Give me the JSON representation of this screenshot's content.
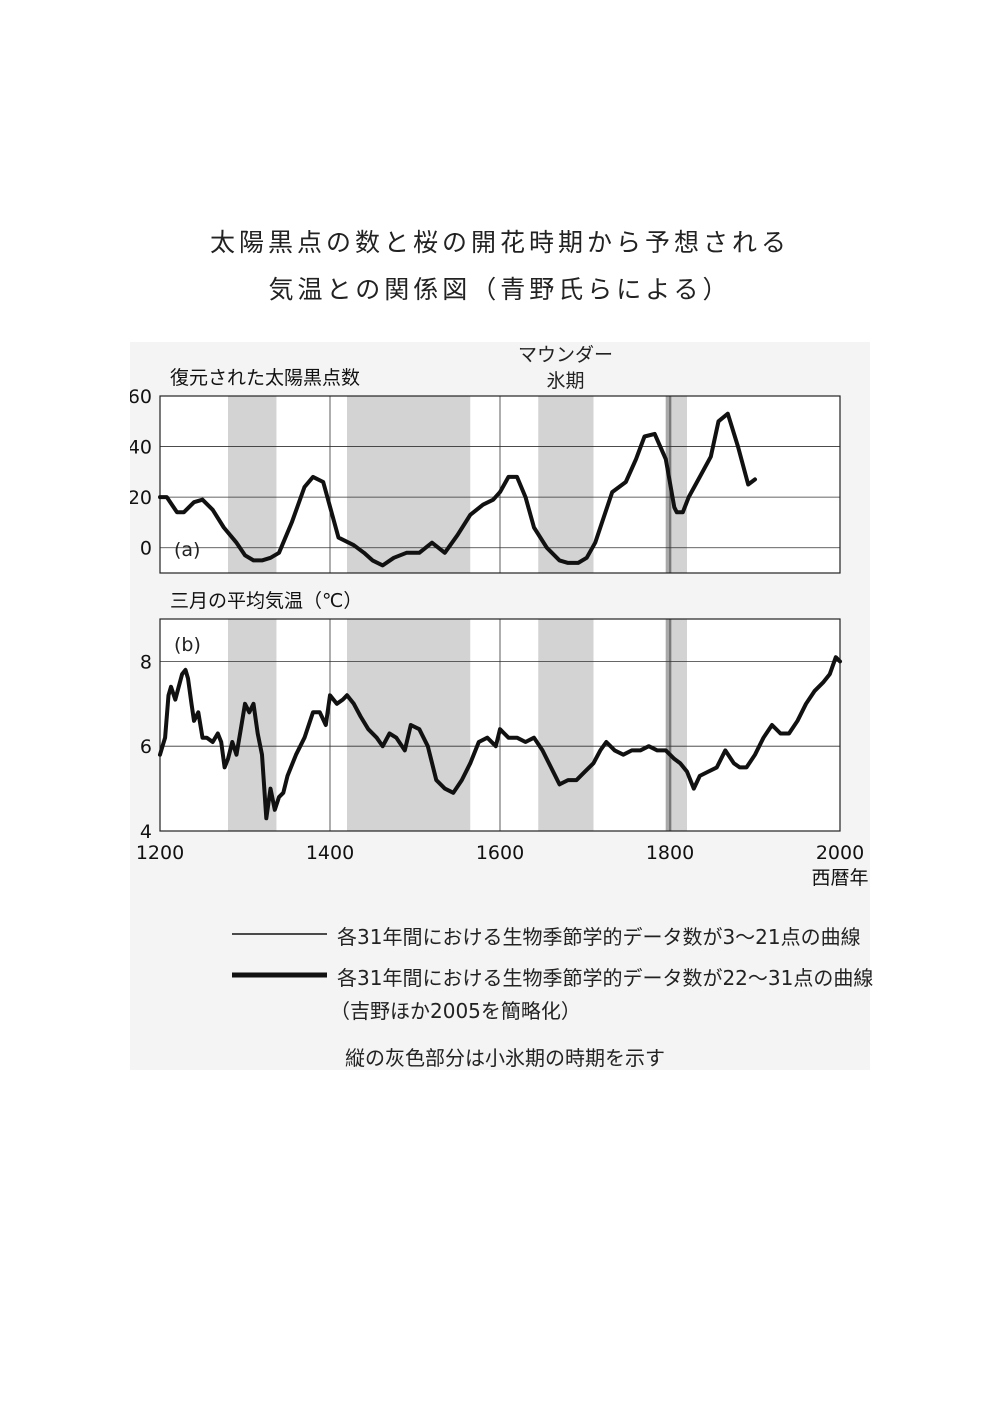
{
  "page": {
    "title_line1": "太陽黒点の数と桜の開花時期から予想される",
    "title_line2": "気温との関係図（青野氏らによる）"
  },
  "legend": {
    "thin_line": "各31年間における生物季節学的データ数が3〜21点の曲線",
    "thick_line": "各31年間における生物季節学的データ数が22〜31点の曲線",
    "source": "（吉野ほか2005を簡略化）",
    "note": "縦の灰色部分は小氷期の時期を示す"
  },
  "chart_data": [
    {
      "type": "line",
      "panel_label": "(a)",
      "title": "復元された太陽黒点数",
      "annotation": "マウンダー\n氷期",
      "xlim": [
        1200,
        2000
      ],
      "ylim": [
        -10,
        60
      ],
      "yticks": [
        0,
        20,
        40,
        60
      ],
      "xticks": [
        1200,
        1400,
        1600,
        1800,
        2000
      ],
      "grid": true,
      "shaded_periods": [
        [
          1280,
          1337
        ],
        [
          1420,
          1565
        ],
        [
          1645,
          1710
        ],
        [
          1795,
          1820
        ]
      ],
      "dark_band": [
        1795,
        1802
      ],
      "series": [
        {
          "x": [
            1200,
            1208,
            1220,
            1228,
            1240,
            1250,
            1262,
            1275,
            1290,
            1300,
            1310,
            1320,
            1330,
            1340,
            1355,
            1370,
            1380,
            1392,
            1410,
            1428,
            1440,
            1450,
            1462,
            1475,
            1490,
            1505,
            1520,
            1535,
            1550,
            1565,
            1580,
            1592,
            1600,
            1610,
            1620,
            1630,
            1640,
            1655,
            1670,
            1680,
            1692,
            1702,
            1712,
            1722,
            1732,
            1748,
            1760,
            1770,
            1782,
            1795,
            1805,
            1808,
            1815,
            1822,
            1835,
            1848,
            1857,
            1868,
            1880,
            1892,
            1900
          ],
          "values": [
            20,
            20,
            14,
            14,
            18,
            19,
            15,
            8,
            2,
            -3,
            -5,
            -5,
            -4,
            -2,
            10,
            24,
            28,
            26,
            4,
            1,
            -2,
            -5,
            -7,
            -4,
            -2,
            -2,
            2,
            -2,
            5,
            13,
            17,
            19,
            22,
            28,
            28,
            20,
            8,
            0,
            -5,
            -6,
            -6,
            -4,
            2,
            12,
            22,
            26,
            35,
            44,
            45,
            35,
            16,
            14,
            14,
            20,
            28,
            36,
            50,
            53,
            40,
            25,
            27
          ]
        }
      ]
    },
    {
      "type": "line",
      "panel_label": "(b)",
      "title": "三月の平均気温（℃）",
      "xlabel": "西暦年",
      "xlim": [
        1200,
        2000
      ],
      "ylim": [
        4,
        9
      ],
      "yticks": [
        4,
        6,
        8
      ],
      "xticks": [
        1200,
        1400,
        1600,
        1800,
        2000
      ],
      "grid": true,
      "shaded_periods": [
        [
          1280,
          1337
        ],
        [
          1420,
          1565
        ],
        [
          1645,
          1710
        ],
        [
          1795,
          1820
        ]
      ],
      "dark_band": [
        1795,
        1802
      ],
      "series": [
        {
          "x": [
            1200,
            1203,
            1206,
            1210,
            1213,
            1218,
            1222,
            1226,
            1230,
            1233,
            1237,
            1240,
            1245,
            1250,
            1255,
            1262,
            1268,
            1272,
            1276,
            1280,
            1285,
            1290,
            1295,
            1300,
            1305,
            1310,
            1315,
            1320,
            1325,
            1330,
            1335,
            1340,
            1345,
            1350,
            1360,
            1370,
            1380,
            1388,
            1395,
            1400,
            1408,
            1415,
            1420,
            1428,
            1436,
            1445,
            1455,
            1462,
            1470,
            1478,
            1488,
            1495,
            1505,
            1515,
            1525,
            1535,
            1545,
            1555,
            1565,
            1575,
            1585,
            1595,
            1600,
            1605,
            1610,
            1620,
            1630,
            1640,
            1650,
            1660,
            1670,
            1680,
            1690,
            1700,
            1710,
            1718,
            1725,
            1735,
            1745,
            1755,
            1765,
            1775,
            1785,
            1795,
            1805,
            1812,
            1820,
            1828,
            1835,
            1845,
            1855,
            1865,
            1875,
            1882,
            1890,
            1900,
            1910,
            1920,
            1930,
            1940,
            1950,
            1960,
            1970,
            1980,
            1988,
            1995,
            2000
          ],
          "values": [
            5.8,
            6.0,
            6.2,
            7.2,
            7.4,
            7.1,
            7.4,
            7.7,
            7.8,
            7.6,
            7.0,
            6.6,
            6.8,
            6.2,
            6.2,
            6.1,
            6.3,
            6.1,
            5.5,
            5.7,
            6.1,
            5.8,
            6.4,
            7.0,
            6.8,
            7.0,
            6.3,
            5.8,
            4.3,
            5.0,
            4.5,
            4.8,
            4.9,
            5.3,
            5.8,
            6.2,
            6.8,
            6.8,
            6.5,
            7.2,
            7.0,
            7.1,
            7.2,
            7.0,
            6.7,
            6.4,
            6.2,
            6.0,
            6.3,
            6.2,
            5.9,
            6.5,
            6.4,
            6.0,
            5.2,
            5.0,
            4.9,
            5.2,
            5.6,
            6.1,
            6.2,
            6.0,
            6.4,
            6.3,
            6.2,
            6.2,
            6.1,
            6.2,
            5.9,
            5.5,
            5.1,
            5.2,
            5.2,
            5.4,
            5.6,
            5.9,
            6.1,
            5.9,
            5.8,
            5.9,
            5.9,
            6.0,
            5.9,
            5.9,
            5.7,
            5.6,
            5.4,
            5.0,
            5.3,
            5.4,
            5.5,
            5.9,
            5.6,
            5.5,
            5.5,
            5.8,
            6.2,
            6.5,
            6.3,
            6.3,
            6.6,
            7.0,
            7.3,
            7.5,
            7.7,
            8.1,
            8.0
          ]
        }
      ]
    }
  ],
  "colors": {
    "panel_bg": "#f4f4f4",
    "plot_bg": "#ffffff",
    "shade": "#d3d3d3",
    "dark_band": "#a9a9a9",
    "line": "#111111",
    "grid": "#333333"
  }
}
